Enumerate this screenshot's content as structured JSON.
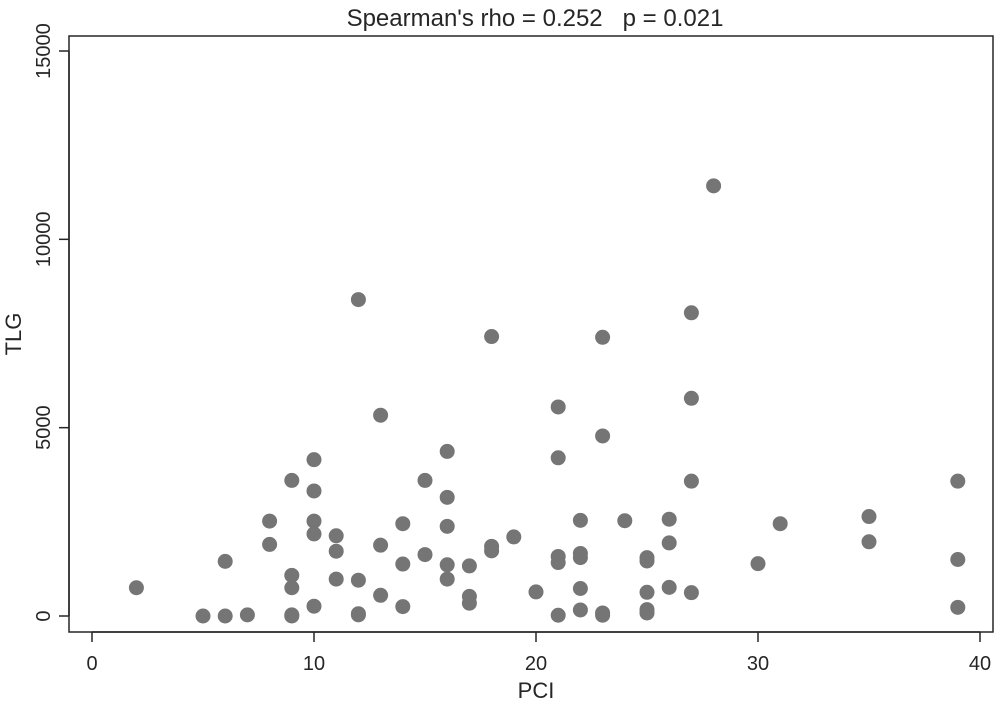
{
  "chart_data": {
    "type": "scatter",
    "title": "Spearman's rho = 0.252   p = 0.021",
    "xlabel": "PCI",
    "ylabel": "TLG",
    "xlim": [
      0,
      40
    ],
    "ylim": [
      0,
      15000
    ],
    "xticks": [
      0,
      10,
      20,
      30,
      40
    ],
    "yticks": [
      0,
      5000,
      10000,
      15000
    ],
    "xtick_labels": [
      "0",
      "10",
      "20",
      "30",
      "40"
    ],
    "ytick_labels": [
      "0",
      "5000",
      "10000",
      "15000"
    ],
    "grid": false,
    "legend": "none",
    "marker_color": "#757575",
    "series": [
      {
        "points": [
          [
            2,
            750
          ],
          [
            5,
            0
          ],
          [
            6,
            1450
          ],
          [
            6,
            0
          ],
          [
            7,
            30
          ],
          [
            8,
            2520
          ],
          [
            8,
            1900
          ],
          [
            9,
            3600
          ],
          [
            9,
            1080
          ],
          [
            9,
            750
          ],
          [
            9,
            30
          ],
          [
            9,
            0
          ],
          [
            10,
            4150
          ],
          [
            10,
            3320
          ],
          [
            10,
            2520
          ],
          [
            10,
            2180
          ],
          [
            10,
            260
          ],
          [
            11,
            2130
          ],
          [
            11,
            1720
          ],
          [
            11,
            980
          ],
          [
            12,
            8400
          ],
          [
            12,
            950
          ],
          [
            12,
            60
          ],
          [
            12,
            30
          ],
          [
            13,
            5330
          ],
          [
            13,
            1880
          ],
          [
            13,
            550
          ],
          [
            14,
            2450
          ],
          [
            14,
            1380
          ],
          [
            14,
            250
          ],
          [
            15,
            3600
          ],
          [
            15,
            1630
          ],
          [
            16,
            4370
          ],
          [
            16,
            3150
          ],
          [
            16,
            2380
          ],
          [
            16,
            1360
          ],
          [
            16,
            980
          ],
          [
            17,
            1330
          ],
          [
            17,
            520
          ],
          [
            17,
            340
          ],
          [
            18,
            7420
          ],
          [
            18,
            1850
          ],
          [
            18,
            1730
          ],
          [
            19,
            2100
          ],
          [
            20,
            640
          ],
          [
            21,
            5550
          ],
          [
            21,
            4200
          ],
          [
            21,
            1580
          ],
          [
            21,
            1420
          ],
          [
            21,
            20
          ],
          [
            22,
            2540
          ],
          [
            22,
            1660
          ],
          [
            22,
            1550
          ],
          [
            22,
            730
          ],
          [
            22,
            160
          ],
          [
            23,
            7400
          ],
          [
            23,
            4780
          ],
          [
            23,
            80
          ],
          [
            23,
            20
          ],
          [
            24,
            2530
          ],
          [
            25,
            1550
          ],
          [
            25,
            1460
          ],
          [
            25,
            630
          ],
          [
            25,
            170
          ],
          [
            25,
            80
          ],
          [
            26,
            2570
          ],
          [
            26,
            1940
          ],
          [
            26,
            760
          ],
          [
            27,
            8050
          ],
          [
            27,
            5780
          ],
          [
            27,
            3580
          ],
          [
            27,
            620
          ],
          [
            28,
            11420
          ],
          [
            30,
            1390
          ],
          [
            31,
            2450
          ],
          [
            35,
            2640
          ],
          [
            35,
            1970
          ],
          [
            39,
            3580
          ],
          [
            39,
            1500
          ],
          [
            39,
            230
          ]
        ]
      }
    ]
  }
}
